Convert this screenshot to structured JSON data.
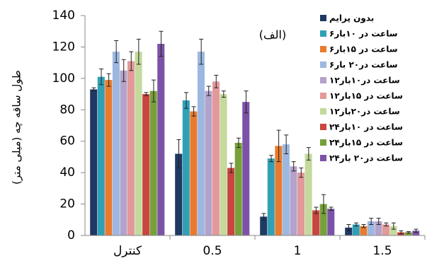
{
  "chart_data": {
    "type": "bar",
    "ylabel": "طول ساقه چه (میلی متر)",
    "annotation": "(الف)",
    "categories": [
      "کنترل",
      "0.5",
      "1",
      "1.5"
    ],
    "ylim": [
      0,
      140
    ],
    "yticks": [
      0,
      20,
      40,
      60,
      80,
      100,
      120,
      140
    ],
    "grid": false,
    "legend": "right",
    "series": [
      {
        "name": "بدون پرایم",
        "color": "#1f3864",
        "values": [
          93,
          52,
          12,
          5
        ],
        "errors": [
          1,
          9,
          2,
          2
        ]
      },
      {
        "name": "۶ساعت در ۱۰بار",
        "color": "#31a0b5",
        "values": [
          101,
          86,
          49,
          7
        ],
        "errors": [
          5,
          5,
          2,
          1
        ]
      },
      {
        "name": "۶ساعت در ۱۵بار",
        "color": "#e87b2f",
        "values": [
          99,
          79,
          57,
          6
        ],
        "errors": [
          4,
          3,
          10,
          1
        ]
      },
      {
        "name": "۶ساعت در۲۰ بار",
        "color": "#9db8e0",
        "values": [
          117,
          117,
          58,
          9
        ],
        "errors": [
          7,
          8,
          6,
          2
        ]
      },
      {
        "name": "۱۲ساعت در۱۰بار",
        "color": "#b3a2c9",
        "values": [
          105,
          92,
          44,
          9
        ],
        "errors": [
          7,
          3,
          3,
          2
        ]
      },
      {
        "name": "۱۲ساعت در ۱۵بار",
        "color": "#e3999a",
        "values": [
          111,
          98,
          40,
          7
        ],
        "errors": [
          6,
          4,
          3,
          1
        ]
      },
      {
        "name": "۱۲ساعت در۲۰بار",
        "color": "#c4d99c",
        "values": [
          117,
          90,
          52,
          6
        ],
        "errors": [
          8,
          2,
          4,
          2
        ]
      },
      {
        "name": "۲۴ساعت در ۱۰بار",
        "color": "#c9453f",
        "values": [
          90,
          43,
          16,
          2
        ],
        "errors": [
          1,
          3,
          2,
          1
        ]
      },
      {
        "name": "۲۴ساعت در ۱۵بار",
        "color": "#77a03a",
        "values": [
          92,
          59,
          20,
          2
        ],
        "errors": [
          7,
          3,
          6,
          0.5
        ]
      },
      {
        "name": "۲۴ساعت در۲۰ بار",
        "color": "#7b53a6",
        "values": [
          122,
          85,
          17,
          3
        ],
        "errors": [
          8,
          7,
          1,
          1
        ]
      }
    ]
  }
}
